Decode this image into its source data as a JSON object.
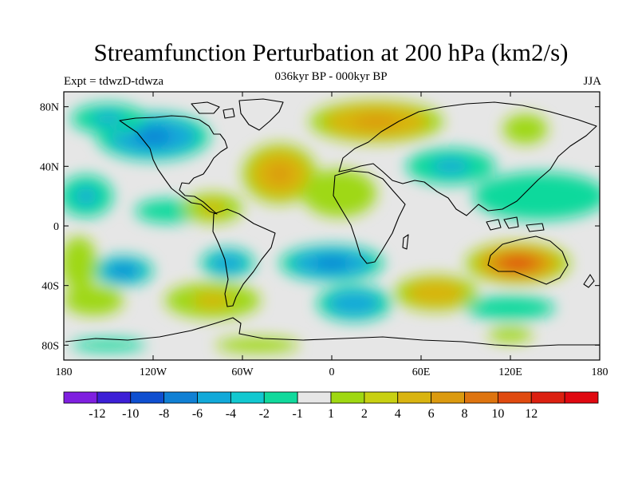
{
  "title": "Streamfunction Perturbation at 200 hPa (km2/s)",
  "left_subtitle": "Expt = tdwzD-tdwza",
  "center_subtitle": "036kyr BP - 000kyr BP",
  "right_subtitle": "JJA",
  "lat_ticks": [
    {
      "value": 80,
      "label": "80N"
    },
    {
      "value": 40,
      "label": "40N"
    },
    {
      "value": 0,
      "label": "0"
    },
    {
      "value": -40,
      "label": "40S"
    },
    {
      "value": -80,
      "label": "80S"
    }
  ],
  "lon_ticks": [
    {
      "value": -180,
      "label": "180"
    },
    {
      "value": -120,
      "label": "120W"
    },
    {
      "value": -60,
      "label": "60W"
    },
    {
      "value": 0,
      "label": "0"
    },
    {
      "value": 60,
      "label": "60E"
    },
    {
      "value": 120,
      "label": "120E"
    },
    {
      "value": 180,
      "label": "180"
    }
  ],
  "colorbar": {
    "colors": [
      "#7f1fe0",
      "#3c1fd6",
      "#0f4fd0",
      "#1080d4",
      "#12a9d9",
      "#12c8d0",
      "#10d99c",
      "#e6e6e6",
      "#9fd812",
      "#c8d012",
      "#d9b410",
      "#db9a0f",
      "#de740f",
      "#e04a0f",
      "#dc2010",
      "#e00810"
    ],
    "labels": [
      "-12",
      "-10",
      "-8",
      "-6",
      "-4",
      "-2",
      "-1",
      "1",
      "2",
      "4",
      "6",
      "8",
      "10",
      "12"
    ]
  },
  "field_anomalies": [
    {
      "lon": -120,
      "lat": 60,
      "rlon": 38,
      "rlat": 16,
      "level": -5
    },
    {
      "lon": -150,
      "lat": 72,
      "rlon": 25,
      "rlat": 10,
      "level": -3
    },
    {
      "lon": -165,
      "lat": 20,
      "rlon": 18,
      "rlat": 14,
      "level": -3
    },
    {
      "lon": -110,
      "lat": 10,
      "rlon": 22,
      "rlat": 8,
      "level": -2
    },
    {
      "lon": -35,
      "lat": 35,
      "rlon": 25,
      "rlat": 20,
      "level": 5
    },
    {
      "lon": -80,
      "lat": 12,
      "rlon": 20,
      "rlat": 10,
      "level": 3
    },
    {
      "lon": 30,
      "lat": 70,
      "rlon": 45,
      "rlat": 14,
      "level": 5
    },
    {
      "lon": 5,
      "lat": 22,
      "rlon": 25,
      "rlat": 16,
      "level": 2
    },
    {
      "lon": 80,
      "lat": 40,
      "rlon": 30,
      "rlat": 12,
      "level": -3
    },
    {
      "lon": 130,
      "lat": 65,
      "rlon": 15,
      "rlat": 10,
      "level": 2
    },
    {
      "lon": 140,
      "lat": 20,
      "rlon": 45,
      "rlat": 16,
      "level": -2
    },
    {
      "lon": -70,
      "lat": -25,
      "rlon": 18,
      "rlat": 10,
      "level": -4
    },
    {
      "lon": 0,
      "lat": -25,
      "rlon": 35,
      "rlat": 12,
      "level": -5
    },
    {
      "lon": -140,
      "lat": -30,
      "rlon": 20,
      "rlat": 10,
      "level": -5
    },
    {
      "lon": -170,
      "lat": -25,
      "rlon": 12,
      "rlat": 18,
      "level": 2
    },
    {
      "lon": -80,
      "lat": -50,
      "rlon": 32,
      "rlat": 12,
      "level": 3
    },
    {
      "lon": -160,
      "lat": -50,
      "rlon": 20,
      "rlat": 10,
      "level": 2
    },
    {
      "lon": 125,
      "lat": -25,
      "rlon": 35,
      "rlat": 14,
      "level": 9
    },
    {
      "lon": 70,
      "lat": -45,
      "rlon": 28,
      "rlat": 12,
      "level": 4
    },
    {
      "lon": 15,
      "lat": -52,
      "rlon": 25,
      "rlat": 12,
      "level": -4
    },
    {
      "lon": 120,
      "lat": -55,
      "rlon": 30,
      "rlat": 8,
      "level": -2
    },
    {
      "lon": 120,
      "lat": -73,
      "rlon": 15,
      "rlat": 5,
      "level": 2
    },
    {
      "lon": -50,
      "lat": -80,
      "rlon": 28,
      "rlat": 5,
      "level": 2
    },
    {
      "lon": -150,
      "lat": -80,
      "rlon": 25,
      "rlat": 4,
      "level": -2
    }
  ]
}
